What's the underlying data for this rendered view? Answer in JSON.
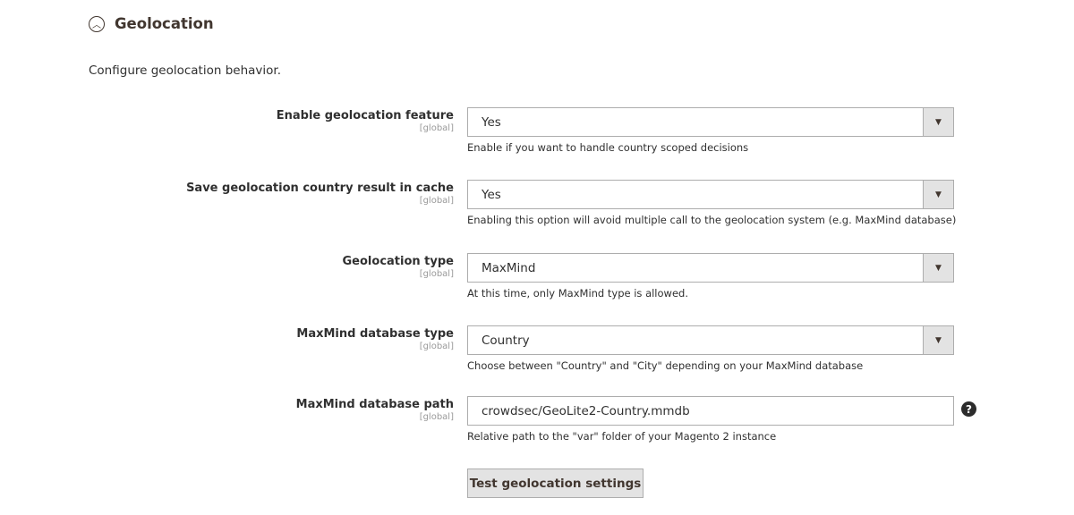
{
  "section": {
    "title": "Geolocation",
    "description": "Configure geolocation behavior.",
    "icon": "chevron-up-circle-icon"
  },
  "fields": [
    {
      "label": "Enable geolocation feature",
      "scope": "[global]",
      "value": "Yes",
      "note": "Enable if you want to handle country scoped decisions"
    },
    {
      "label": "Save geolocation country result in cache",
      "scope": "[global]",
      "value": "Yes",
      "note": "Enabling this option will avoid multiple call to the geolocation system (e.g. MaxMind database)"
    },
    {
      "label": "Geolocation type",
      "scope": "[global]",
      "value": "MaxMind",
      "note": "At this time, only MaxMind type is allowed."
    },
    {
      "label": "MaxMind database type",
      "scope": "[global]",
      "value": "Country",
      "note": "Choose between \"Country\" and \"City\" depending on your MaxMind database"
    },
    {
      "label": "MaxMind database path",
      "scope": "[global]",
      "value": "crowdsec/GeoLite2-Country.mmdb",
      "note": "Relative path to the \"var\" folder of your Magento 2 instance"
    }
  ],
  "test_button": "Test geolocation settings"
}
